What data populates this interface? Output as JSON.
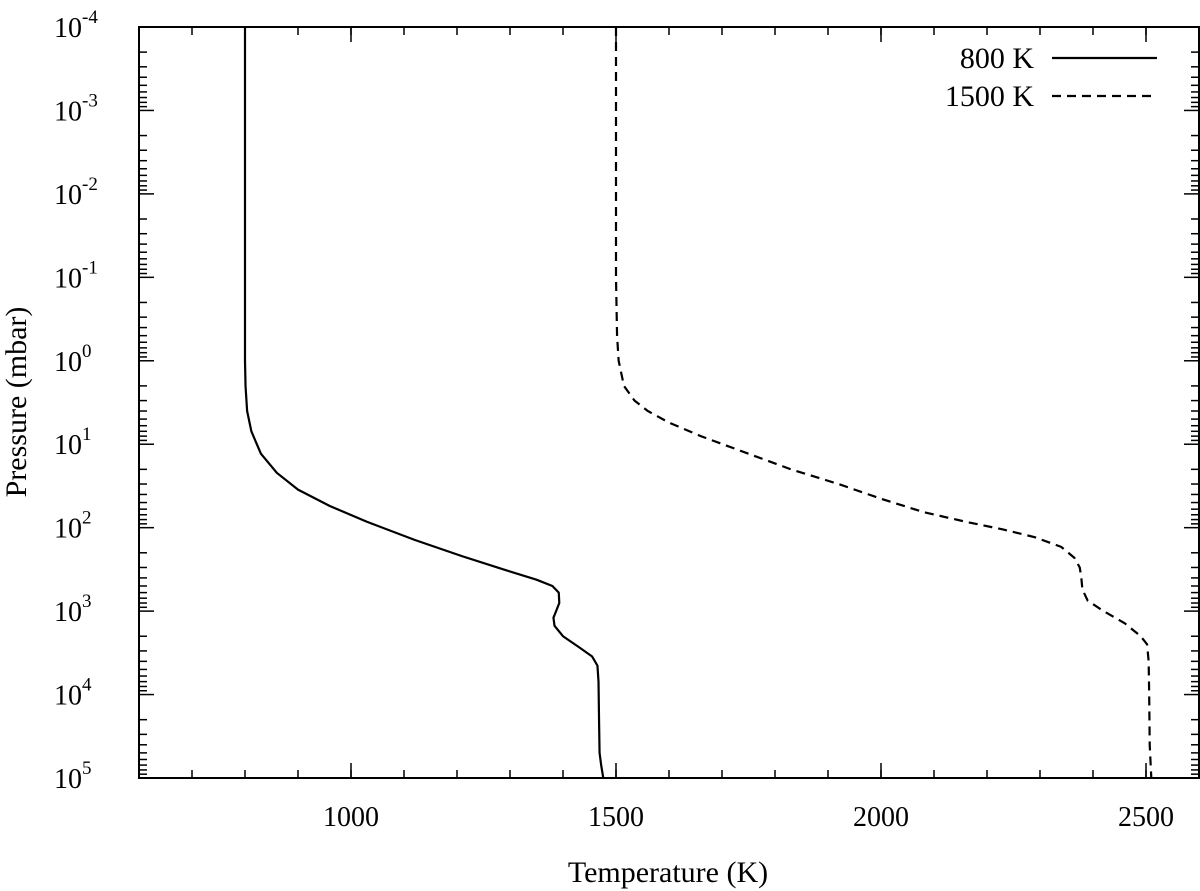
{
  "chart_data": {
    "type": "line",
    "title": "",
    "xlabel": "Temperature (K)",
    "ylabel": "Pressure (mbar)",
    "xlim": [
      600,
      2600
    ],
    "ylim": [
      0.0001,
      100000.0
    ],
    "y_scale": "log",
    "y_inverted": true,
    "grid": false,
    "legend_position": "top-right",
    "x_ticks": [
      1000,
      1500,
      2000,
      2500
    ],
    "x_minor_step": 100,
    "y_ticks": [
      {
        "base": "10",
        "exp": "-4"
      },
      {
        "base": "10",
        "exp": "-3"
      },
      {
        "base": "10",
        "exp": "-2"
      },
      {
        "base": "10",
        "exp": "-1"
      },
      {
        "base": "10",
        "exp": "0"
      },
      {
        "base": "10",
        "exp": "1"
      },
      {
        "base": "10",
        "exp": "2"
      },
      {
        "base": "10",
        "exp": "3"
      },
      {
        "base": "10",
        "exp": "4"
      },
      {
        "base": "10",
        "exp": "5"
      }
    ],
    "series": [
      {
        "name": "800 K",
        "style": "solid",
        "color": "#000000",
        "points": [
          [
            800,
            0.0001
          ],
          [
            800,
            0.001
          ],
          [
            800,
            0.01
          ],
          [
            800,
            0.1
          ],
          [
            800,
            1
          ],
          [
            801,
            2
          ],
          [
            804,
            4
          ],
          [
            812,
            7
          ],
          [
            830,
            13
          ],
          [
            860,
            22
          ],
          [
            900,
            35
          ],
          [
            960,
            55
          ],
          [
            1030,
            85
          ],
          [
            1120,
            140
          ],
          [
            1210,
            220
          ],
          [
            1290,
            320
          ],
          [
            1350,
            420
          ],
          [
            1380,
            500
          ],
          [
            1392,
            600
          ],
          [
            1393,
            800
          ],
          [
            1387,
            1000
          ],
          [
            1382,
            1200
          ],
          [
            1384,
            1500
          ],
          [
            1400,
            2000
          ],
          [
            1430,
            2700
          ],
          [
            1455,
            3500
          ],
          [
            1465,
            4500
          ],
          [
            1467,
            7000
          ],
          [
            1468,
            20000
          ],
          [
            1469,
            50000
          ],
          [
            1472,
            70000
          ],
          [
            1476,
            100000
          ]
        ]
      },
      {
        "name": "1500 K",
        "style": "dashed",
        "color": "#000000",
        "points": [
          [
            1500,
            0.0001
          ],
          [
            1500,
            0.001
          ],
          [
            1500,
            0.01
          ],
          [
            1500,
            0.1
          ],
          [
            1502,
            0.5
          ],
          [
            1505,
            1
          ],
          [
            1515,
            2
          ],
          [
            1535,
            3
          ],
          [
            1560,
            4
          ],
          [
            1600,
            5.5
          ],
          [
            1660,
            8
          ],
          [
            1750,
            13
          ],
          [
            1830,
            20
          ],
          [
            1920,
            30
          ],
          [
            2000,
            45
          ],
          [
            2080,
            65
          ],
          [
            2160,
            85
          ],
          [
            2230,
            105
          ],
          [
            2290,
            130
          ],
          [
            2340,
            170
          ],
          [
            2365,
            230
          ],
          [
            2375,
            300
          ],
          [
            2378,
            400
          ],
          [
            2380,
            550
          ],
          [
            2390,
            750
          ],
          [
            2420,
            1000
          ],
          [
            2460,
            1400
          ],
          [
            2490,
            2000
          ],
          [
            2502,
            2500
          ],
          [
            2505,
            4000
          ],
          [
            2506,
            10000
          ],
          [
            2507,
            40000
          ],
          [
            2510,
            100000
          ]
        ]
      }
    ]
  }
}
